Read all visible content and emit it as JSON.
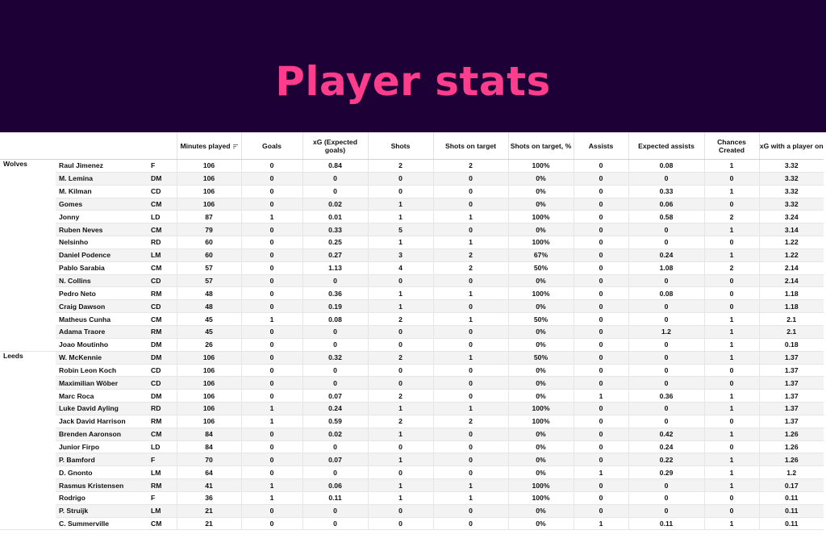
{
  "title": "Player stats",
  "columns": {
    "minutes": "Minutes played",
    "goals": "Goals",
    "xg": "xG (Expected goals)",
    "shots": "Shots",
    "sot": "Shots on target",
    "sot_pct": "Shots on target, %",
    "assists": "Assists",
    "xa": "Expected assists",
    "chances": "Chances Created",
    "xg_on": "xG with a player on"
  },
  "teams": [
    {
      "name": "Wolves",
      "players": [
        [
          "Raul Jimenez",
          "F",
          "106",
          "0",
          "0.84",
          "2",
          "2",
          "100%",
          "0",
          "0.08",
          "1",
          "3.32"
        ],
        [
          "M. Lemina",
          "DM",
          "106",
          "0",
          "0",
          "0",
          "0",
          "0%",
          "0",
          "0",
          "0",
          "3.32"
        ],
        [
          "M. Kilman",
          "CD",
          "106",
          "0",
          "0",
          "0",
          "0",
          "0%",
          "0",
          "0.33",
          "1",
          "3.32"
        ],
        [
          "Gomes",
          "CM",
          "106",
          "0",
          "0.02",
          "1",
          "0",
          "0%",
          "0",
          "0.06",
          "0",
          "3.32"
        ],
        [
          "Jonny",
          "LD",
          "87",
          "1",
          "0.01",
          "1",
          "1",
          "100%",
          "0",
          "0.58",
          "2",
          "3.24"
        ],
        [
          "Ruben Neves",
          "CM",
          "79",
          "0",
          "0.33",
          "5",
          "0",
          "0%",
          "0",
          "0",
          "1",
          "3.14"
        ],
        [
          "Nelsinho",
          "RD",
          "60",
          "0",
          "0.25",
          "1",
          "1",
          "100%",
          "0",
          "0",
          "0",
          "1.22"
        ],
        [
          "Daniel Podence",
          "LM",
          "60",
          "0",
          "0.27",
          "3",
          "2",
          "67%",
          "0",
          "0.24",
          "1",
          "1.22"
        ],
        [
          "Pablo Sarabia",
          "CM",
          "57",
          "0",
          "1.13",
          "4",
          "2",
          "50%",
          "0",
          "1.08",
          "2",
          "2.14"
        ],
        [
          "N. Collins",
          "CD",
          "57",
          "0",
          "0",
          "0",
          "0",
          "0%",
          "0",
          "0",
          "0",
          "2.14"
        ],
        [
          "Pedro Neto",
          "RM",
          "48",
          "0",
          "0.36",
          "1",
          "1",
          "100%",
          "0",
          "0.08",
          "0",
          "1.18"
        ],
        [
          "Craig Dawson",
          "CD",
          "48",
          "0",
          "0.19",
          "1",
          "0",
          "0%",
          "0",
          "0",
          "0",
          "1.18"
        ],
        [
          "Matheus Cunha",
          "CM",
          "45",
          "1",
          "0.08",
          "2",
          "1",
          "50%",
          "0",
          "0",
          "1",
          "2.1"
        ],
        [
          "Adama Traore",
          "RM",
          "45",
          "0",
          "0",
          "0",
          "0",
          "0%",
          "0",
          "1.2",
          "1",
          "2.1"
        ],
        [
          "Joao Moutinho",
          "DM",
          "26",
          "0",
          "0",
          "0",
          "0",
          "0%",
          "0",
          "0",
          "1",
          "0.18"
        ]
      ]
    },
    {
      "name": "Leeds",
      "players": [
        [
          "W. McKennie",
          "DM",
          "106",
          "0",
          "0.32",
          "2",
          "1",
          "50%",
          "0",
          "0",
          "1",
          "1.37"
        ],
        [
          "Robin Leon Koch",
          "CD",
          "106",
          "0",
          "0",
          "0",
          "0",
          "0%",
          "0",
          "0",
          "0",
          "1.37"
        ],
        [
          "Maximilian Wöber",
          "CD",
          "106",
          "0",
          "0",
          "0",
          "0",
          "0%",
          "0",
          "0",
          "0",
          "1.37"
        ],
        [
          "Marc Roca",
          "DM",
          "106",
          "0",
          "0.07",
          "2",
          "0",
          "0%",
          "1",
          "0.36",
          "1",
          "1.37"
        ],
        [
          "Luke David Ayling",
          "RD",
          "106",
          "1",
          "0.24",
          "1",
          "1",
          "100%",
          "0",
          "0",
          "1",
          "1.37"
        ],
        [
          "Jack David Harrison",
          "RM",
          "106",
          "1",
          "0.59",
          "2",
          "2",
          "100%",
          "0",
          "0",
          "0",
          "1.37"
        ],
        [
          "Brenden Aaronson",
          "CM",
          "84",
          "0",
          "0.02",
          "1",
          "0",
          "0%",
          "0",
          "0.42",
          "1",
          "1.26"
        ],
        [
          "Junior Firpo",
          "LD",
          "84",
          "0",
          "0",
          "0",
          "0",
          "0%",
          "0",
          "0.24",
          "0",
          "1.26"
        ],
        [
          "P. Bamford",
          "F",
          "70",
          "0",
          "0.07",
          "1",
          "0",
          "0%",
          "0",
          "0.22",
          "1",
          "1.26"
        ],
        [
          "D. Gnonto",
          "LM",
          "64",
          "0",
          "0",
          "0",
          "0",
          "0%",
          "1",
          "0.29",
          "1",
          "1.2"
        ],
        [
          "Rasmus Kristensen",
          "RM",
          "41",
          "1",
          "0.06",
          "1",
          "1",
          "100%",
          "0",
          "0",
          "1",
          "0.17"
        ],
        [
          "Rodrigo",
          "F",
          "36",
          "1",
          "0.11",
          "1",
          "1",
          "100%",
          "0",
          "0",
          "0",
          "0.11"
        ],
        [
          "P. Struijk",
          "LM",
          "21",
          "0",
          "0",
          "0",
          "0",
          "0%",
          "0",
          "0",
          "0",
          "0.11"
        ],
        [
          "C. Summerville",
          "CM",
          "21",
          "0",
          "0",
          "0",
          "0",
          "0%",
          "1",
          "0.11",
          "1",
          "0.11"
        ]
      ]
    }
  ]
}
